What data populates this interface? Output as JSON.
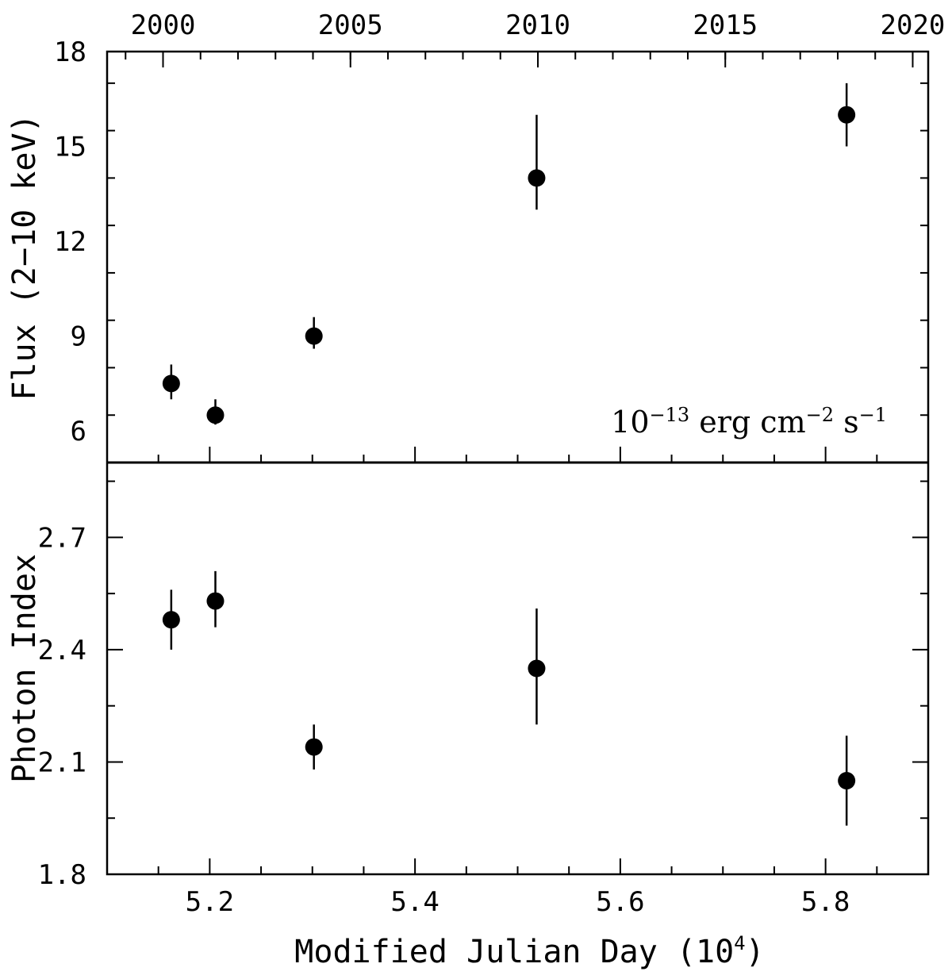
{
  "chart_data": {
    "type": "scatter",
    "x_axis": {
      "label": "Modified Julian Day (10",
      "label_sup": "4",
      "label_close": ")",
      "range": [
        5.1,
        5.9
      ],
      "ticks": [
        5.2,
        5.4,
        5.6,
        5.8
      ],
      "tick_labels": [
        "5.2",
        "5.4",
        "5.6",
        "5.8"
      ]
    },
    "top_axis": {
      "ticks_mjd": [
        5.1545,
        5.3371,
        5.5197,
        5.7023,
        5.8849
      ],
      "tick_labels": [
        "2000",
        "2005",
        "2010",
        "2015",
        "2020"
      ]
    },
    "panels": [
      {
        "name": "flux",
        "ylabel": "Flux (2−10 keV)",
        "ylim": [
          5,
          18
        ],
        "yticks": [
          6,
          9,
          12,
          15,
          18
        ],
        "ytick_labels": [
          "6",
          "9",
          "12",
          "15",
          "18"
        ],
        "annotation": {
          "base": "10",
          "exp1": "−13",
          "mid1": " erg cm",
          "exp2": "−2",
          "mid2": " s",
          "exp3": "−1"
        },
        "points": [
          {
            "x": 5.1625,
            "y": 7.5,
            "ylo": 7.0,
            "yhi": 8.1
          },
          {
            "x": 5.2055,
            "y": 6.5,
            "ylo": 6.2,
            "yhi": 7.0
          },
          {
            "x": 5.3015,
            "y": 9.0,
            "ylo": 8.6,
            "yhi": 9.6
          },
          {
            "x": 5.5185,
            "y": 14.0,
            "ylo": 13.0,
            "yhi": 16.0
          },
          {
            "x": 5.8205,
            "y": 16.0,
            "ylo": 15.0,
            "yhi": 17.0
          }
        ]
      },
      {
        "name": "index",
        "ylabel": "Photon Index",
        "ylim": [
          1.8,
          2.9
        ],
        "yticks": [
          1.8,
          2.1,
          2.4,
          2.7
        ],
        "ytick_labels": [
          "1.8",
          "2.1",
          "2.4",
          "2.7"
        ],
        "points": [
          {
            "x": 5.1625,
            "y": 2.48,
            "ylo": 2.4,
            "yhi": 2.56
          },
          {
            "x": 5.2055,
            "y": 2.53,
            "ylo": 2.46,
            "yhi": 2.61
          },
          {
            "x": 5.3015,
            "y": 2.14,
            "ylo": 2.08,
            "yhi": 2.2
          },
          {
            "x": 5.5185,
            "y": 2.35,
            "ylo": 2.2,
            "yhi": 2.51
          },
          {
            "x": 5.8205,
            "y": 2.05,
            "ylo": 1.93,
            "yhi": 2.17
          }
        ]
      }
    ]
  }
}
